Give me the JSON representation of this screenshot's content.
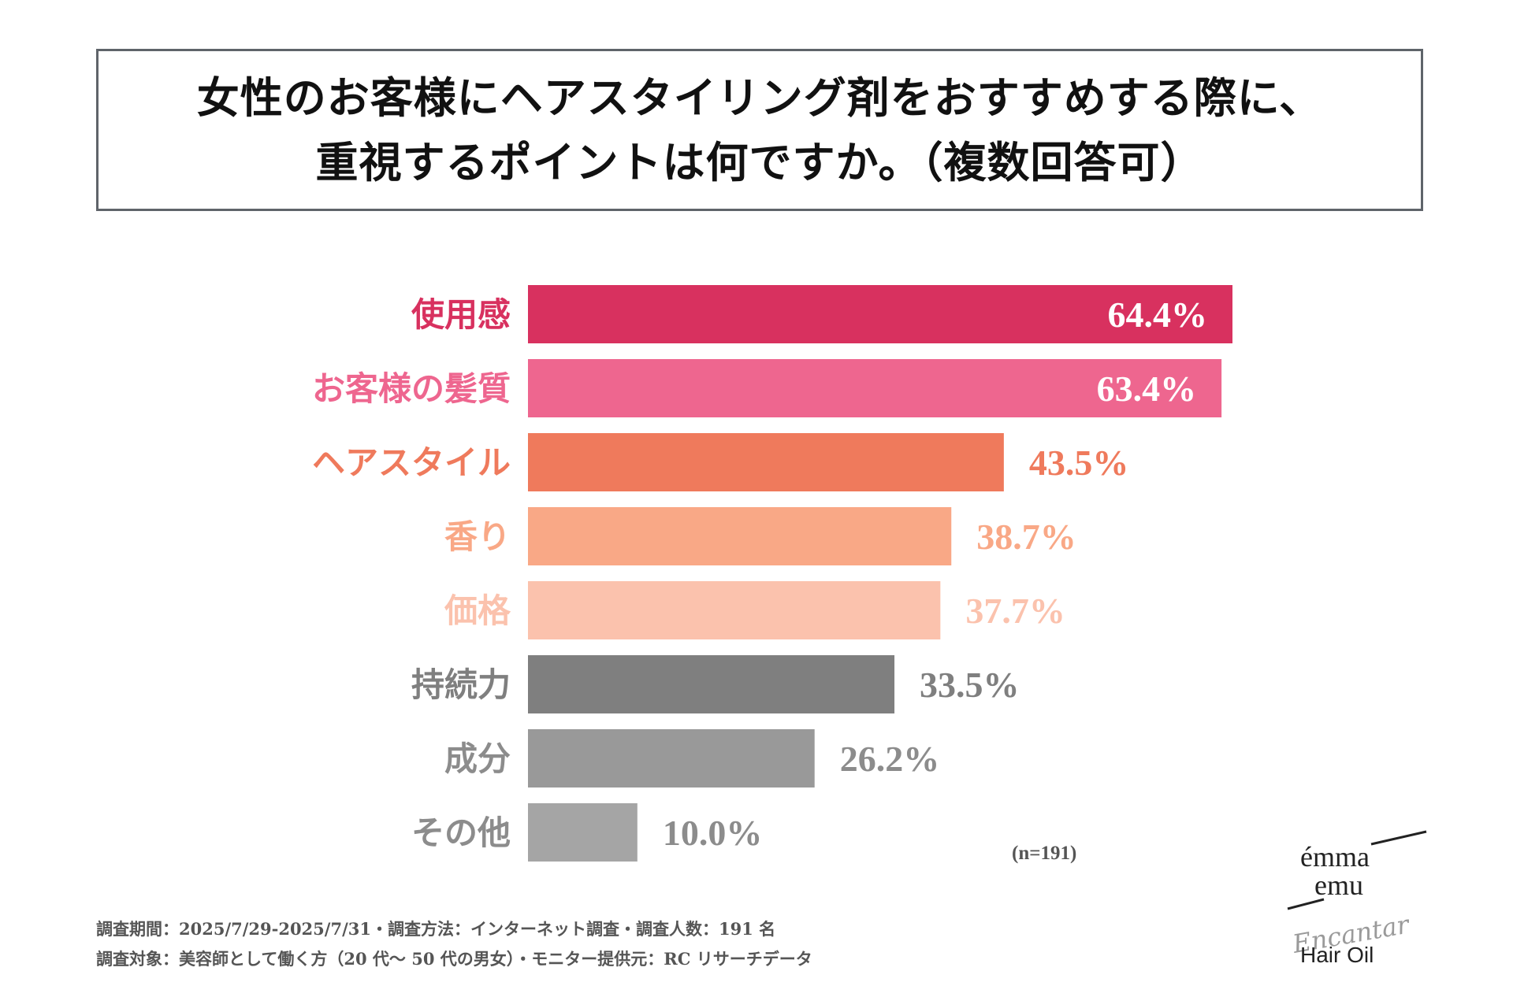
{
  "title": {
    "line1": "女性のお客様にヘアスタイリング剤をおすすめする際に、",
    "line2": "重視するポイントは何ですか。（複数回答可）"
  },
  "chart_data": {
    "type": "bar",
    "orientation": "horizontal",
    "categories": [
      "使用感",
      "お客様の髪質",
      "ヘアスタイル",
      "香り",
      "価格",
      "持続力",
      "成分",
      "その他"
    ],
    "values": [
      64.4,
      63.4,
      43.5,
      38.7,
      37.7,
      33.5,
      26.2,
      10.0
    ],
    "value_labels": [
      "64.4%",
      "63.4%",
      "43.5%",
      "38.7%",
      "37.7%",
      "33.5%",
      "26.2%",
      "10.0%"
    ],
    "bar_colors": [
      "#d8315f",
      "#ee668f",
      "#ef7a5c",
      "#f9a886",
      "#fbc2ad",
      "#7f7f7f",
      "#999999",
      "#a5a5a5"
    ],
    "label_colors": [
      "#d8315f",
      "#ee668f",
      "#ef7a5c",
      "#f9a886",
      "#fbc2ad",
      "#7f7f7f",
      "#8c8c8c",
      "#8c8c8c"
    ],
    "value_label_colors": [
      "#ffffff",
      "#ffffff",
      "#ef7a5c",
      "#f9a886",
      "#fbc2ad",
      "#7f7f7f",
      "#8c8c8c",
      "#8c8c8c"
    ],
    "value_label_inside": [
      true,
      true,
      false,
      false,
      false,
      false,
      false,
      false
    ],
    "xlim": [
      0,
      64.4
    ],
    "sample_note": "(n=191)",
    "xlabel": "",
    "ylabel": "",
    "grid": false,
    "legend": "none"
  },
  "footnotes": {
    "line1": "調査期間：2025/7/29-2025/7/31・調査方法：インターネット調査・調査人数：191 名",
    "line2": "調査対象：美容師として働く方（20 代～ 50 代の男女）・モニター提供元：RC リサーチデータ"
  },
  "brand": {
    "name_line1": "émma",
    "name_line2": "emu",
    "script": "Encantar",
    "product": "Hair Oil"
  }
}
